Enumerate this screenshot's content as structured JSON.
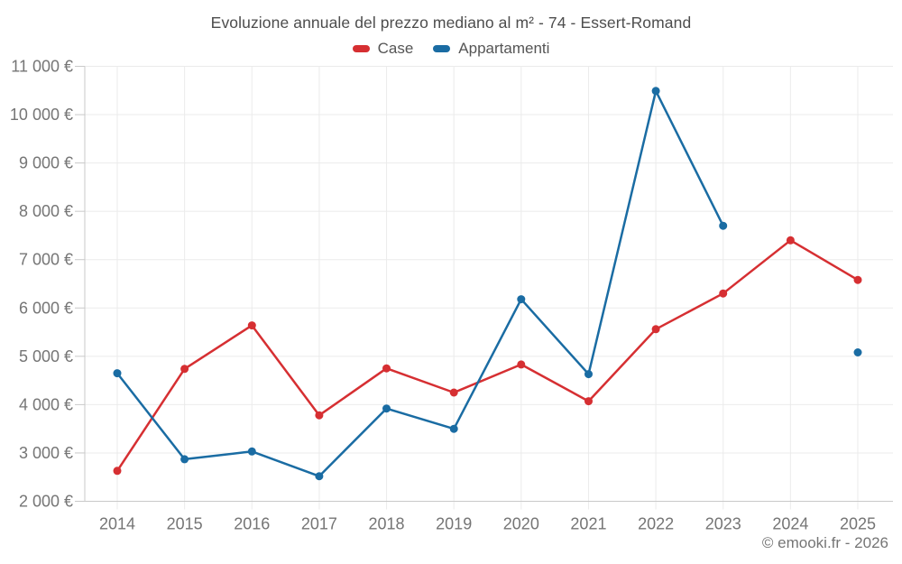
{
  "chart_data": {
    "type": "line",
    "title": "Evoluzione annuale del prezzo mediano al m² - 74 - Essert-Romand",
    "categories": [
      "2014",
      "2015",
      "2016",
      "2017",
      "2018",
      "2019",
      "2020",
      "2021",
      "2022",
      "2023",
      "2024",
      "2025"
    ],
    "series": [
      {
        "name": "Case",
        "color": "#d62f32",
        "values": [
          2630,
          4740,
          5640,
          3780,
          4750,
          4250,
          4830,
          4070,
          5560,
          6300,
          7400,
          6580
        ]
      },
      {
        "name": "Appartamenti",
        "color": "#1a6ca3",
        "values": [
          4650,
          2870,
          3030,
          2520,
          3920,
          3500,
          6180,
          4630,
          10490,
          7700,
          null,
          5080
        ]
      }
    ],
    "xlabel": "",
    "ylabel": "",
    "ylim": [
      2000,
      11000
    ],
    "ytick_step": 1000,
    "ytick_labels": [
      "2 000 €",
      "3 000 €",
      "4 000 €",
      "5 000 €",
      "6 000 €",
      "7 000 €",
      "8 000 €",
      "9 000 €",
      "10 000 €",
      "11 000 €"
    ],
    "grid": true,
    "legend_position": "top"
  },
  "colors": {
    "grid": "#ebebeb",
    "axis": "#c9c9c9",
    "tick_text": "#757575",
    "title_text": "#4d4d4d"
  },
  "footer": {
    "credit": "© emooki.fr - 2026"
  }
}
